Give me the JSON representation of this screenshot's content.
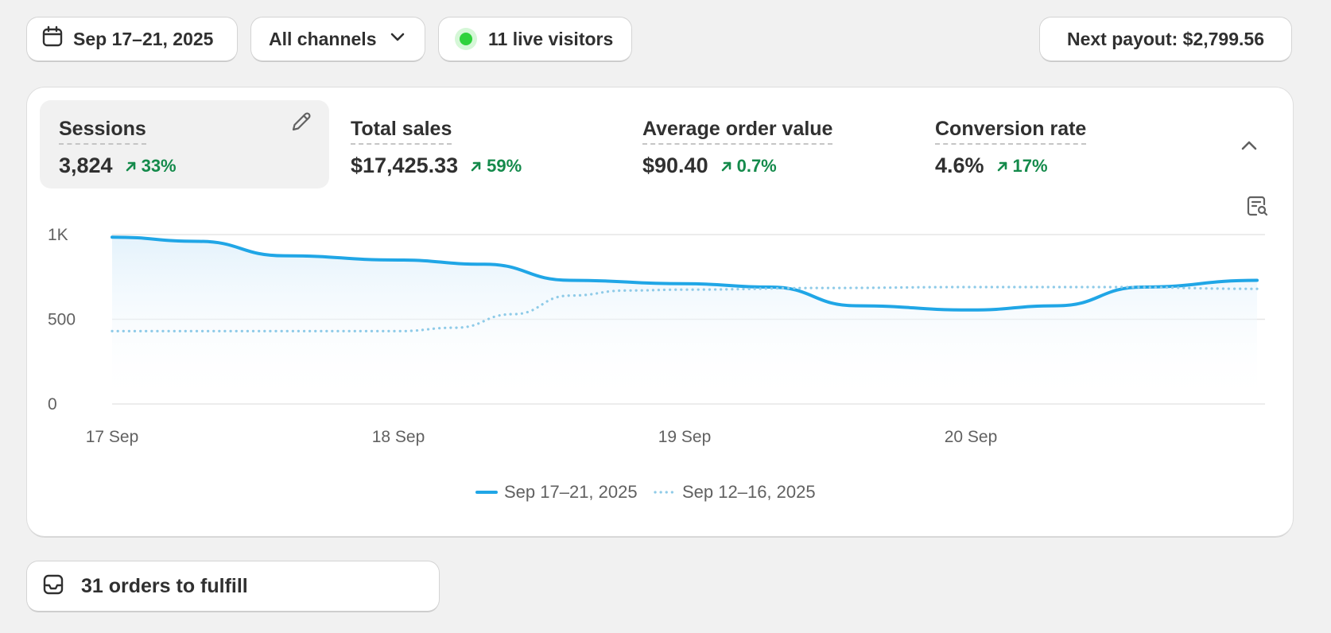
{
  "toolbar": {
    "date_range": "Sep 17–21, 2025",
    "channel": "All channels",
    "live_visitors": "11 live visitors",
    "payout": "Next payout: $2,799.56"
  },
  "metrics": [
    {
      "label": "Sessions",
      "value": "3,824",
      "change": "33%",
      "active": true
    },
    {
      "label": "Total sales",
      "value": "$17,425.33",
      "change": "59%",
      "active": false
    },
    {
      "label": "Average order value",
      "value": "$90.40",
      "change": "0.7%",
      "active": false
    },
    {
      "label": "Conversion rate",
      "value": "4.6%",
      "change": "17%",
      "active": false
    }
  ],
  "colors": {
    "primary_series": "#20a6e6",
    "comparison_series": "#8fcbe8",
    "positive_change": "#148a4b",
    "live_dot": "#2fd23c"
  },
  "icons": {
    "date": "calendar-icon",
    "channel": "chevron-down-icon",
    "edit": "pencil-icon",
    "collapse": "chevron-up-icon",
    "explore": "report-search-icon",
    "orders": "inbox-icon"
  },
  "chart_data": {
    "type": "line",
    "x": [
      "17 Sep",
      "18 Sep",
      "19 Sep",
      "20 Sep"
    ],
    "ylim": [
      0,
      1000
    ],
    "yticks": [
      "1K",
      "500",
      "0"
    ],
    "ytick_values": [
      1000,
      500,
      0
    ],
    "grid": true,
    "legend_position": "bottom-center",
    "series": [
      {
        "name": "Sep 17–21, 2025",
        "style": "solid",
        "points": [
          [
            0,
            985
          ],
          [
            0.3,
            960
          ],
          [
            0.6,
            875
          ],
          [
            1.0,
            850
          ],
          [
            1.3,
            825
          ],
          [
            1.6,
            730
          ],
          [
            2.0,
            710
          ],
          [
            2.3,
            690
          ],
          [
            2.6,
            580
          ],
          [
            3.0,
            555
          ],
          [
            3.3,
            580
          ],
          [
            3.6,
            690
          ],
          [
            4.0,
            730
          ]
        ]
      },
      {
        "name": "Sep 12–16, 2025",
        "style": "dotted",
        "points": [
          [
            0,
            430
          ],
          [
            0.5,
            430
          ],
          [
            1.0,
            430
          ],
          [
            1.2,
            450
          ],
          [
            1.4,
            530
          ],
          [
            1.6,
            640
          ],
          [
            1.8,
            670
          ],
          [
            2.0,
            675
          ],
          [
            2.5,
            685
          ],
          [
            3.0,
            690
          ],
          [
            3.5,
            690
          ],
          [
            4.0,
            680
          ]
        ]
      }
    ]
  },
  "orders": {
    "label": "31 orders to fulfill"
  }
}
